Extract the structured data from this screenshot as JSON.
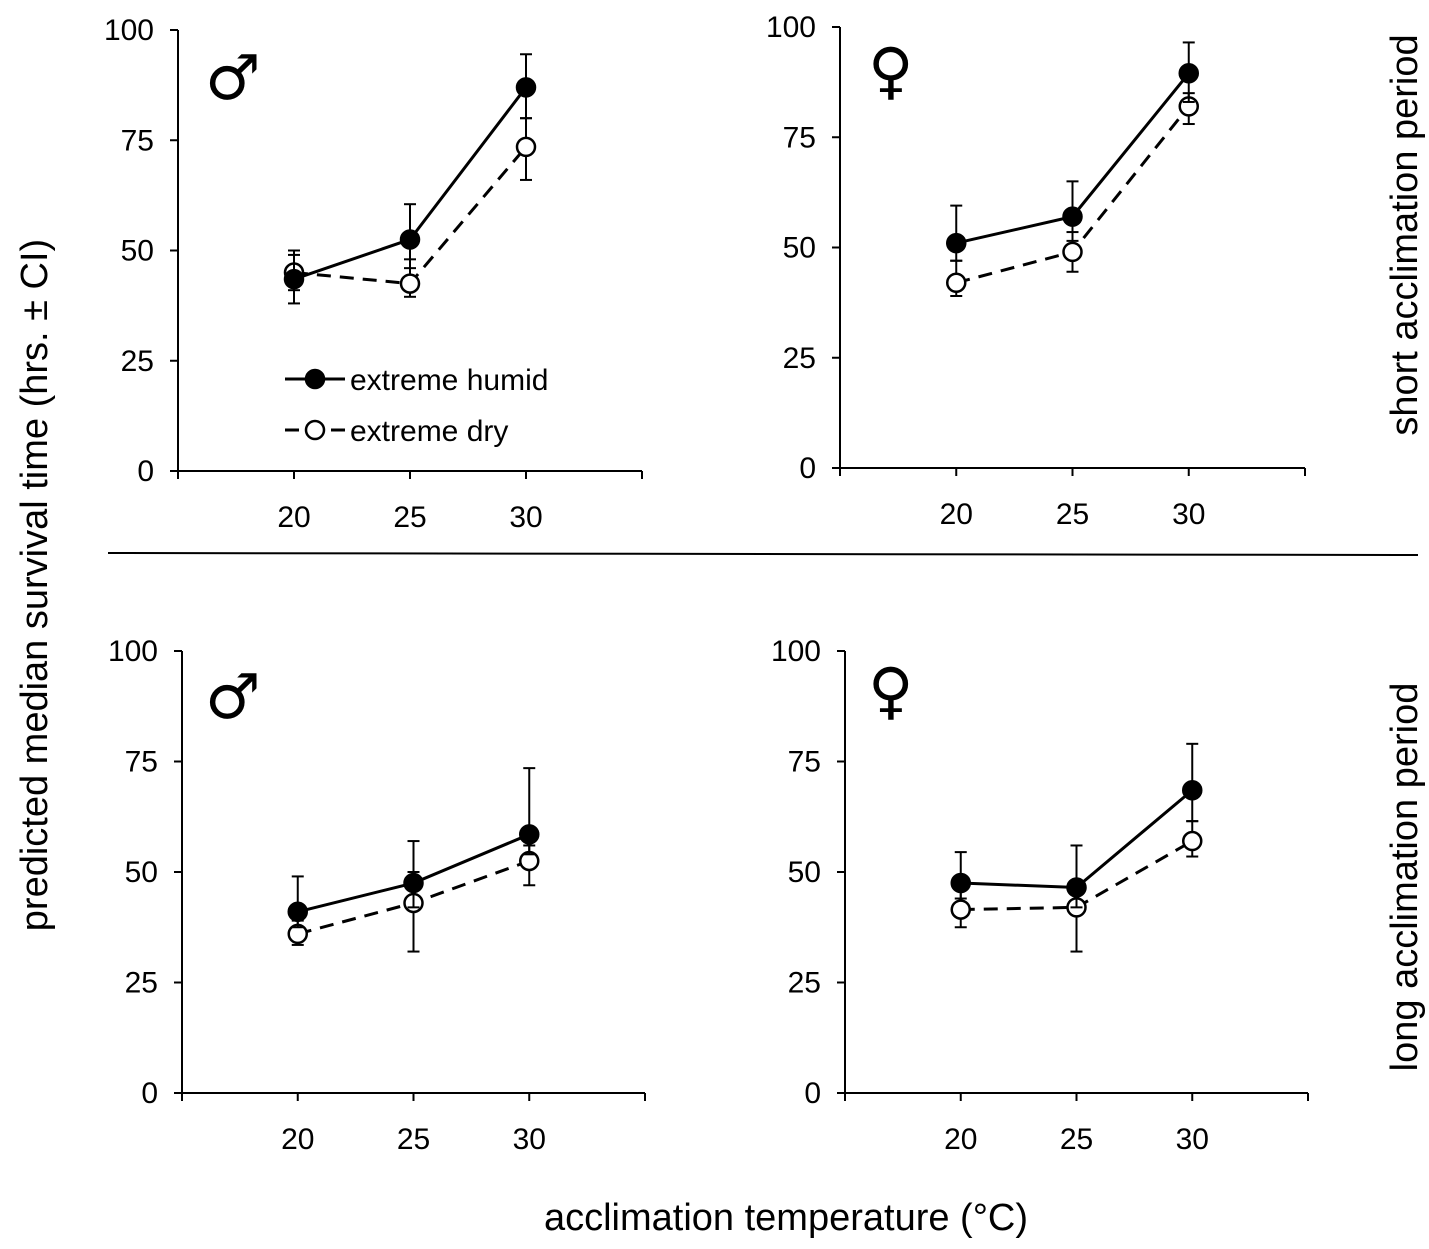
{
  "figure": {
    "ylabel": "predicted median survival time (hrs. ± CI)",
    "xlabel": "acclimation temperature (°C)",
    "row_labels": [
      "short acclimation period",
      "long acclimation period"
    ],
    "legend": {
      "humid": "extreme humid",
      "dry": "extreme dry"
    },
    "symbols": {
      "male": "♂",
      "female": "♀"
    }
  },
  "chart_data": [
    {
      "type": "line",
      "title": "",
      "sex": "male",
      "period": "short",
      "x": [
        20,
        25,
        30
      ],
      "xticks": [
        "20",
        "25",
        "30"
      ],
      "xlim": [
        15,
        35
      ],
      "ylim": [
        0,
        100
      ],
      "yticks": [
        "0",
        "25",
        "50",
        "75",
        "100"
      ],
      "legend_position": "bottom-left",
      "series": [
        {
          "name": "extreme humid",
          "values": [
            43.5,
            52.5,
            87
          ],
          "ci_low": [
            38,
            46,
            80
          ],
          "ci_high": [
            49,
            60.5,
            94.5
          ]
        },
        {
          "name": "extreme dry",
          "values": [
            45,
            42.5,
            73.5
          ],
          "ci_low": [
            41,
            39.5,
            66
          ],
          "ci_high": [
            50,
            48,
            80
          ]
        }
      ]
    },
    {
      "type": "line",
      "title": "",
      "sex": "female",
      "period": "short",
      "x": [
        20,
        25,
        30
      ],
      "xticks": [
        "20",
        "25",
        "30"
      ],
      "xlim": [
        15,
        35
      ],
      "ylim": [
        0,
        100
      ],
      "yticks": [
        "0",
        "25",
        "50",
        "75",
        "100"
      ],
      "series": [
        {
          "name": "extreme humid",
          "values": [
            51,
            57,
            89.5
          ],
          "ci_low": [
            47,
            51.5,
            83
          ],
          "ci_high": [
            59.5,
            65,
            96.5
          ]
        },
        {
          "name": "extreme dry",
          "values": [
            42,
            49,
            82
          ],
          "ci_low": [
            39,
            44.5,
            78
          ],
          "ci_high": [
            47,
            53.5,
            85
          ]
        }
      ]
    },
    {
      "type": "line",
      "title": "",
      "sex": "male",
      "period": "long",
      "x": [
        20,
        25,
        30
      ],
      "xticks": [
        "20",
        "25",
        "30"
      ],
      "xlim": [
        15,
        35
      ],
      "ylim": [
        0,
        100
      ],
      "yticks": [
        "0",
        "25",
        "50",
        "75",
        "100"
      ],
      "series": [
        {
          "name": "extreme humid",
          "values": [
            41,
            47.5,
            58.5
          ],
          "ci_low": [
            37.5,
            42,
            54
          ],
          "ci_high": [
            49,
            57,
            73.5
          ]
        },
        {
          "name": "extreme dry",
          "values": [
            36,
            43,
            52.5
          ],
          "ci_low": [
            33.5,
            32,
            47
          ],
          "ci_high": [
            39,
            50,
            56
          ]
        }
      ]
    },
    {
      "type": "line",
      "title": "",
      "sex": "female",
      "period": "long",
      "x": [
        20,
        25,
        30
      ],
      "xticks": [
        "20",
        "25",
        "30"
      ],
      "xlim": [
        15,
        35
      ],
      "ylim": [
        0,
        100
      ],
      "yticks": [
        "0",
        "25",
        "50",
        "75",
        "100"
      ],
      "series": [
        {
          "name": "extreme humid",
          "values": [
            47.5,
            46.5,
            68.5
          ],
          "ci_low": [
            44,
            42,
            61.5
          ],
          "ci_high": [
            54.5,
            56,
            79
          ]
        },
        {
          "name": "extreme dry",
          "values": [
            41.5,
            42,
            57
          ],
          "ci_low": [
            37.5,
            32,
            53.5
          ],
          "ci_high": [
            46,
            46,
            61.5
          ]
        }
      ]
    }
  ]
}
